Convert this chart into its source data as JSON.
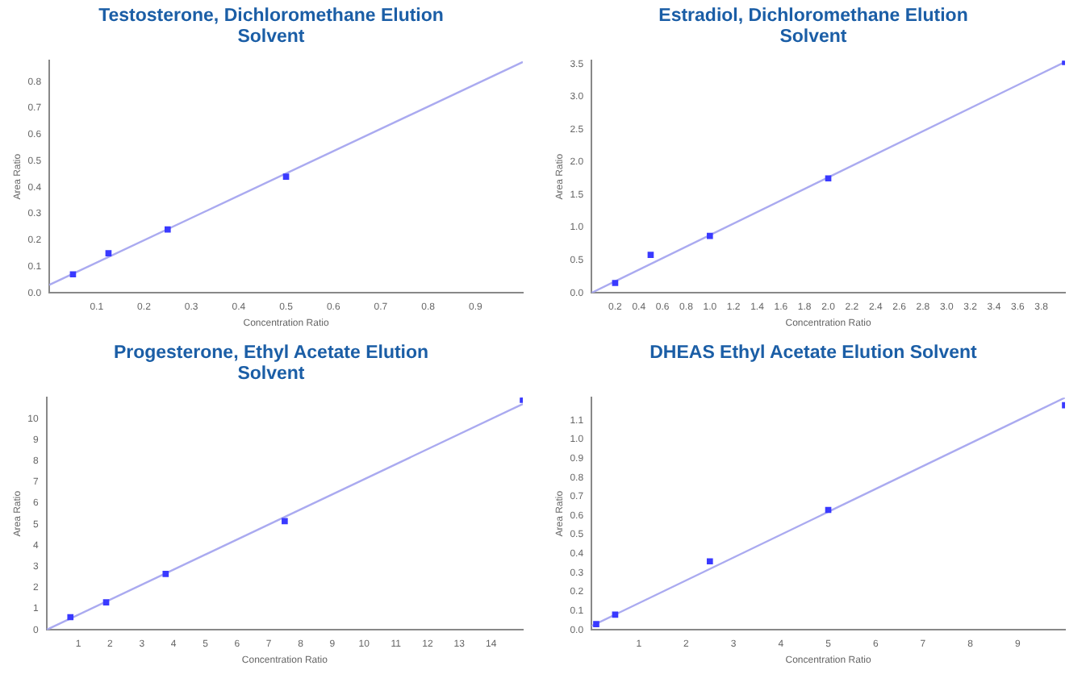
{
  "chart_data": [
    {
      "type": "scatter",
      "title": "Testosterone, Dichloromethane Elution Solvent",
      "xlabel": "Concentration Ratio",
      "ylabel": "Area Ratio",
      "grid": false,
      "legend": false,
      "xlim": [
        0,
        1.0
      ],
      "ylim": [
        0,
        0.88
      ],
      "xticks": [
        {
          "value": 0.1,
          "label": "0.1"
        },
        {
          "value": 0.2,
          "label": "0.2"
        },
        {
          "value": 0.3,
          "label": "0.3"
        },
        {
          "value": 0.4,
          "label": "0.4"
        },
        {
          "value": 0.5,
          "label": "0.5"
        },
        {
          "value": 0.6,
          "label": "0.6"
        },
        {
          "value": 0.7,
          "label": "0.7"
        },
        {
          "value": 0.8,
          "label": "0.8"
        },
        {
          "value": 0.9,
          "label": "0.9"
        }
      ],
      "yticks": [
        {
          "value": 0,
          "label": "0.0"
        },
        {
          "value": 0.1,
          "label": "0.1"
        },
        {
          "value": 0.2,
          "label": "0.2"
        },
        {
          "value": 0.3,
          "label": "0.3"
        },
        {
          "value": 0.4,
          "label": "0.4"
        },
        {
          "value": 0.5,
          "label": "0.5"
        },
        {
          "value": 0.6,
          "label": "0.6"
        },
        {
          "value": 0.7,
          "label": "0.7"
        },
        {
          "value": 0.8,
          "label": "0.8"
        }
      ],
      "series": [
        {
          "marker": "square",
          "color": "#3a3aff",
          "x": [
            0.05,
            0.125,
            0.25,
            0.5
          ],
          "values": [
            0.07,
            0.15,
            0.24,
            0.44
          ]
        },
        {
          "type": "line",
          "marker": "none",
          "color": "#aaaaf0",
          "x": [
            0,
            1.0
          ],
          "values": [
            0.03,
            0.875
          ]
        }
      ]
    },
    {
      "type": "scatter",
      "title": "Estradiol, Dichloromethane Elution Solvent",
      "xlabel": "Concentration Ratio",
      "ylabel": "Area Ratio",
      "grid": false,
      "legend": false,
      "xlim": [
        0,
        4.0
      ],
      "ylim": [
        0,
        3.55
      ],
      "xticks": [
        {
          "value": 0.2,
          "label": "0.2"
        },
        {
          "value": 0.4,
          "label": "0.4"
        },
        {
          "value": 0.6,
          "label": "0.6"
        },
        {
          "value": 0.8,
          "label": "0.8"
        },
        {
          "value": 1.0,
          "label": "1.0"
        },
        {
          "value": 1.2,
          "label": "1.2"
        },
        {
          "value": 1.4,
          "label": "1.4"
        },
        {
          "value": 1.6,
          "label": "1.6"
        },
        {
          "value": 1.8,
          "label": "1.8"
        },
        {
          "value": 2.0,
          "label": "2.0"
        },
        {
          "value": 2.2,
          "label": "2.2"
        },
        {
          "value": 2.4,
          "label": "2.4"
        },
        {
          "value": 2.6,
          "label": "2.6"
        },
        {
          "value": 2.8,
          "label": "2.8"
        },
        {
          "value": 3.0,
          "label": "3.0"
        },
        {
          "value": 3.2,
          "label": "3.2"
        },
        {
          "value": 3.4,
          "label": "3.4"
        },
        {
          "value": 3.6,
          "label": "3.6"
        },
        {
          "value": 3.8,
          "label": "3.8"
        }
      ],
      "yticks": [
        {
          "value": 0,
          "label": "0.0"
        },
        {
          "value": 0.5,
          "label": "0.5"
        },
        {
          "value": 1.0,
          "label": "1.0"
        },
        {
          "value": 1.5,
          "label": "1.5"
        },
        {
          "value": 2.0,
          "label": "2.0"
        },
        {
          "value": 2.5,
          "label": "2.5"
        },
        {
          "value": 3.0,
          "label": "3.0"
        },
        {
          "value": 3.5,
          "label": "3.5"
        }
      ],
      "series": [
        {
          "marker": "square",
          "color": "#3a3aff",
          "x": [
            0.2,
            0.5,
            1.0,
            2.0,
            4.0
          ],
          "values": [
            0.15,
            0.58,
            0.87,
            1.75,
            3.53
          ]
        },
        {
          "type": "line",
          "marker": "none",
          "color": "#aaaaf0",
          "x": [
            0,
            4.0
          ],
          "values": [
            0,
            3.53
          ]
        }
      ]
    },
    {
      "type": "scatter",
      "title": "Progesterone, Ethyl Acetate Elution Solvent",
      "xlabel": "Concentration Ratio",
      "ylabel": "Area Ratio",
      "grid": false,
      "legend": false,
      "xlim": [
        0,
        15
      ],
      "ylim": [
        0,
        11
      ],
      "xticks": [
        1,
        2,
        3,
        4,
        5,
        6,
        7,
        8,
        9,
        10,
        11,
        12,
        13,
        14
      ],
      "yticks": [
        0,
        1,
        2,
        3,
        4,
        5,
        6,
        7,
        8,
        9,
        10
      ],
      "series": [
        {
          "marker": "square",
          "color": "#3a3aff",
          "x": [
            0.75,
            1.875,
            3.75,
            7.5,
            15
          ],
          "values": [
            0.6,
            1.3,
            2.65,
            5.15,
            10.9
          ]
        },
        {
          "type": "line",
          "marker": "none",
          "color": "#aaaaf0",
          "x": [
            0,
            15
          ],
          "values": [
            0,
            10.7
          ]
        }
      ]
    },
    {
      "type": "scatter",
      "title": "DHEAS Ethyl Acetate Elution Solvent",
      "xlabel": "Concentration Ratio",
      "ylabel": "Area Ratio",
      "grid": false,
      "legend": false,
      "xlim": [
        0,
        10
      ],
      "ylim": [
        0,
        1.22
      ],
      "xticks": [
        1,
        2,
        3,
        4,
        5,
        6,
        7,
        8,
        9
      ],
      "yticks": [
        {
          "value": 0,
          "label": "0.0"
        },
        {
          "value": 0.1,
          "label": "0.1"
        },
        {
          "value": 0.2,
          "label": "0.2"
        },
        {
          "value": 0.3,
          "label": "0.3"
        },
        {
          "value": 0.4,
          "label": "0.4"
        },
        {
          "value": 0.5,
          "label": "0.5"
        },
        {
          "value": 0.6,
          "label": "0.6"
        },
        {
          "value": 0.7,
          "label": "0.7"
        },
        {
          "value": 0.8,
          "label": "0.8"
        },
        {
          "value": 0.9,
          "label": "0.9"
        },
        {
          "value": 1.0,
          "label": "1.0"
        },
        {
          "value": 1.1,
          "label": "1.1"
        }
      ],
      "series": [
        {
          "marker": "square",
          "color": "#3a3aff",
          "x": [
            0.1,
            0.5,
            2.5,
            5,
            10
          ],
          "values": [
            0.03,
            0.08,
            0.36,
            0.63,
            1.18
          ]
        },
        {
          "type": "line",
          "marker": "none",
          "color": "#aaaaf0",
          "x": [
            0,
            10
          ],
          "values": [
            0.02,
            1.22
          ]
        }
      ]
    }
  ]
}
